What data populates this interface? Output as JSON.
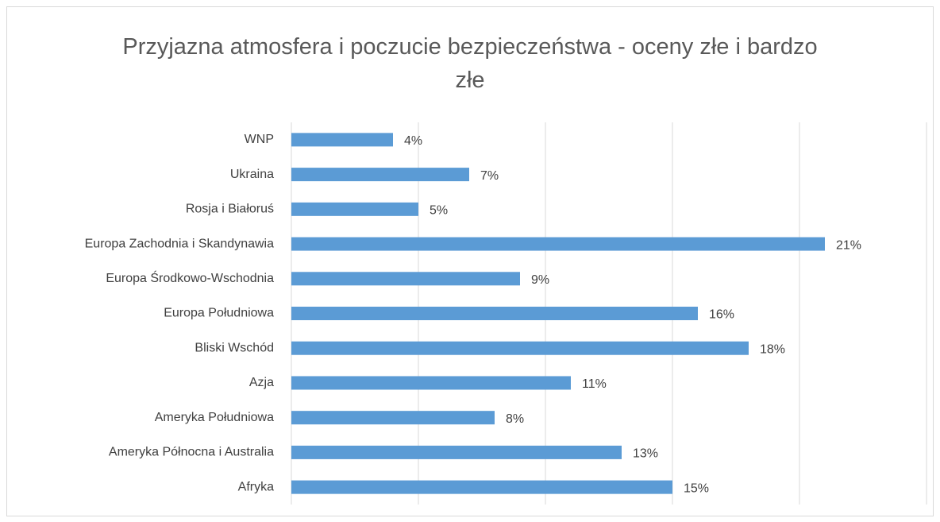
{
  "chart_data": {
    "type": "hbar",
    "title": "Przyjazna atmosfera i poczucie bezpieczeństwa - oceny złe i bardzo złe",
    "categories": [
      "WNP",
      "Ukraina",
      "Rosja i Białoruś",
      "Europa Zachodnia i Skandynawia",
      "Europa Środkowo-Wschodnia",
      "Europa Południowa",
      "Bliski Wschód",
      "Azja",
      "Ameryka Południowa",
      "Ameryka Północna i Australia",
      "Afryka"
    ],
    "values": [
      4,
      7,
      5,
      21,
      9,
      16,
      18,
      11,
      8,
      13,
      15
    ],
    "value_labels": [
      "4%",
      "7%",
      "5%",
      "21%",
      "9%",
      "16%",
      "18%",
      "11%",
      "8%",
      "13%",
      "15%"
    ],
    "color": "#5b9bd5",
    "xlim": [
      0,
      25
    ],
    "xticks": [
      0,
      5,
      10,
      15,
      20,
      25
    ],
    "grid": true
  }
}
